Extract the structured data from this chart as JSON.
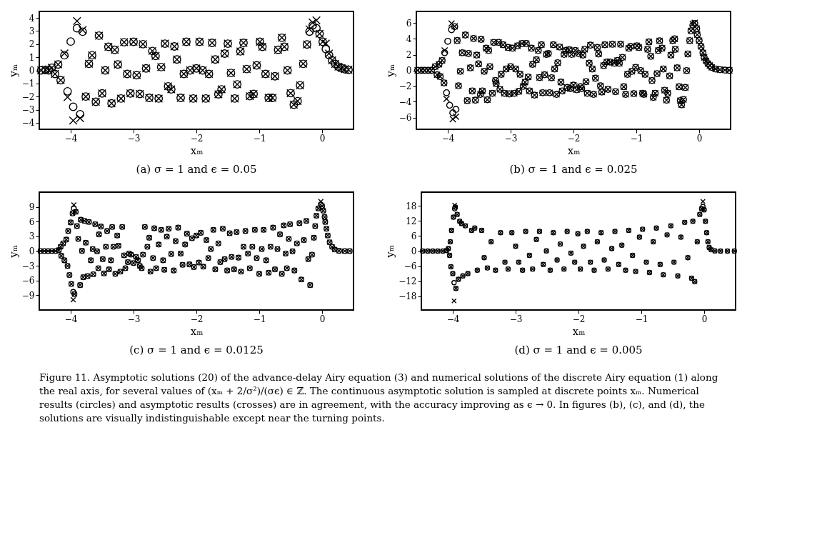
{
  "chart_data": [
    {
      "type": "scatter",
      "title": "(a) σ = 1 and ϵ = 0.05",
      "xlabel": "xₘ",
      "ylabel": "yₘ",
      "xlim": [
        -4.5,
        0.5
      ],
      "xticks": [
        -4,
        -3,
        -2,
        -1,
        0
      ],
      "ylim": [
        -4.5,
        4.5
      ],
      "yticks": [
        -4,
        -3,
        -2,
        -1,
        0,
        1,
        2,
        3,
        4
      ],
      "grid": false,
      "x": [
        -4.47,
        -4.4,
        -4.35,
        -4.3,
        -4.25,
        -4.2,
        -4.16,
        -4.1,
        -4.05,
        -4.0,
        -3.96,
        -3.9,
        -3.85,
        -3.81,
        -3.76,
        -3.71,
        -3.66,
        -3.6,
        -3.55,
        -3.5,
        -3.45,
        -3.4,
        -3.35,
        -3.3,
        -3.25,
        -3.2,
        -3.15,
        -3.1,
        -3.05,
        -3.0,
        -2.95,
        -2.9,
        -2.85,
        -2.8,
        -2.75,
        -2.7,
        -2.65,
        -2.6,
        -2.56,
        -2.5,
        -2.45,
        -2.4,
        -2.35,
        -2.31,
        -2.25,
        -2.2,
        -2.16,
        -2.1,
        -2.05,
        -2.0,
        -1.95,
        -1.9,
        -1.85,
        -1.8,
        -1.75,
        -1.7,
        -1.65,
        -1.6,
        -1.55,
        -1.5,
        -1.45,
        -1.39,
        -1.35,
        -1.3,
        -1.25,
        -1.2,
        -1.15,
        -1.09,
        -1.04,
        -0.99,
        -0.95,
        -0.9,
        -0.85,
        -0.79,
        -0.75,
        -0.7,
        -0.64,
        -0.6,
        -0.55,
        -0.5,
        -0.45,
        -0.39,
        -0.35,
        -0.3,
        -0.24,
        -0.2,
        -0.15,
        -0.09,
        -0.04,
        0.01,
        0.06,
        0.11,
        0.16,
        0.21,
        0.26,
        0.31,
        0.36,
        0.42
      ],
      "series": [
        {
          "color": "#000000",
          "marker": "circle",
          "values": [
            0,
            0.05,
            0,
            0.2,
            -0.27,
            0.45,
            -0.75,
            1.15,
            -1.6,
            2.2,
            -2.78,
            3.22,
            -3.35,
            2.95,
            -2.0,
            0.5,
            1.15,
            -2.4,
            2.65,
            -1.76,
            0,
            1.8,
            -2.52,
            1.57,
            0.45,
            -2.15,
            2.15,
            -0.27,
            -1.76,
            2.18,
            -0.37,
            -1.8,
            2.0,
            0.15,
            -2.1,
            1.48,
            1.1,
            -2.15,
            0.25,
            2.04,
            -1.22,
            -1.45,
            1.83,
            0.83,
            -2.1,
            -0.27,
            2.18,
            0,
            -2.15,
            0.15,
            2.18,
            0,
            -2.15,
            -0.27,
            2.1,
            0.83,
            -1.83,
            -1.45,
            1.28,
            2.04,
            -0.2,
            -2.15,
            -1.07,
            1.45,
            2.1,
            0.1,
            -1.97,
            -1.8,
            0.38,
            2.18,
            1.8,
            -0.27,
            -2.1,
            -2.1,
            -0.45,
            1.57,
            2.49,
            1.8,
            0,
            -1.74,
            -2.62,
            -2.35,
            -1.14,
            0.5,
            1.98,
            2.96,
            3.43,
            3.22,
            2.79,
            2.18,
            1.62,
            1.17,
            0.76,
            0.49,
            0.28,
            0.18,
            0.09,
            0.04
          ]
        },
        {
          "color": "#000000",
          "marker": "cross",
          "values": [
            0,
            0.05,
            0,
            0.2,
            -0.27,
            0.45,
            -0.75,
            1.3,
            -2.05,
            null,
            -3.83,
            3.77,
            -3.65,
            3.08,
            -2.0,
            0.5,
            1.15,
            -2.4,
            2.65,
            -1.76,
            0,
            1.8,
            -2.52,
            1.57,
            0.45,
            -2.15,
            2.15,
            -0.27,
            -1.76,
            2.18,
            -0.37,
            -1.8,
            2.0,
            0.15,
            -2.1,
            1.48,
            1.1,
            -2.15,
            0.25,
            2.04,
            -1.22,
            -1.45,
            1.83,
            0.83,
            -2.1,
            -0.27,
            2.18,
            0,
            -2.15,
            0.15,
            2.18,
            0,
            -2.15,
            -0.27,
            2.1,
            0.83,
            -1.83,
            -1.45,
            1.28,
            2.04,
            -0.2,
            -2.15,
            -1.07,
            1.45,
            2.1,
            0.1,
            -1.97,
            -1.8,
            0.38,
            2.18,
            1.8,
            -0.27,
            -2.1,
            -2.1,
            -0.45,
            1.57,
            2.49,
            1.8,
            0,
            -1.74,
            -2.62,
            -2.35,
            -1.14,
            0.5,
            1.98,
            3.13,
            3.65,
            3.82,
            2.79,
            2.18,
            2.04,
            1.28,
            0.76,
            0.49,
            0.28,
            0.18,
            0.09,
            0.04
          ]
        }
      ]
    },
    {
      "type": "scatter",
      "title": "(b) σ = 1 and ϵ = 0.025",
      "xlabel": "xₘ",
      "ylabel": "yₘ",
      "xlim": [
        -4.5,
        0.5
      ],
      "xticks": [
        -4,
        -3,
        -2,
        -1,
        0
      ],
      "ylim": [
        -7.5,
        7.5
      ],
      "yticks": [
        -6,
        -4,
        -2,
        0,
        2,
        4,
        6
      ],
      "grid": false,
      "x": [
        -4.48,
        -4.42,
        -4.37,
        -4.31,
        -4.26,
        -4.2,
        -4.17,
        -4.14,
        -4.12,
        -4.09,
        -4.06,
        -4.05,
        -4.02,
        -4.0,
        -3.97,
        -3.94,
        -3.92,
        -3.89,
        -3.87,
        -3.85,
        -3.83,
        -3.8,
        -3.77,
        -3.72,
        -3.69,
        -3.67,
        -3.64,
        -3.61,
        -3.59,
        -3.56,
        -3.54,
        -3.51,
        -3.48,
        -3.47,
        -3.45,
        -3.42,
        -3.39,
        -3.37,
        -3.35,
        -3.33,
        -3.29,
        -3.27,
        -3.24,
        -3.23,
        -3.19,
        -3.17,
        -3.15,
        -3.12,
        -3.1,
        -3.07,
        -3.04,
        -3.02,
        -3.0,
        -2.97,
        -2.94,
        -2.92,
        -2.89,
        -2.87,
        -2.85,
        -2.82,
        -2.8,
        -2.77,
        -2.75,
        -2.72,
        -2.7,
        -2.67,
        -2.65,
        -2.62,
        -2.59,
        -2.56,
        -2.54,
        -2.51,
        -2.49,
        -2.46,
        -2.43,
        -2.4,
        -2.38,
        -2.35,
        -2.32,
        -2.3,
        -2.27,
        -2.25,
        -2.22,
        -2.2,
        -2.18,
        -2.15,
        -2.12,
        -2.1,
        -2.07,
        -2.05,
        -2.03,
        -2.0,
        -1.97,
        -1.95,
        -1.92,
        -1.89,
        -1.87,
        -1.85,
        -1.82,
        -1.8,
        -1.78,
        -1.75,
        -1.73,
        -1.7,
        -1.68,
        -1.65,
        -1.62,
        -1.6,
        -1.57,
        -1.55,
        -1.52,
        -1.5,
        -1.47,
        -1.45,
        -1.42,
        -1.38,
        -1.35,
        -1.33,
        -1.3,
        -1.27,
        -1.25,
        -1.22,
        -1.2,
        -1.17,
        -1.14,
        -1.12,
        -1.09,
        -1.07,
        -1.04,
        -1.01,
        -0.99,
        -0.96,
        -0.93,
        -0.9,
        -0.88,
        -0.86,
        -0.82,
        -0.8,
        -0.77,
        -0.75,
        -0.73,
        -0.7,
        -0.67,
        -0.65,
        -0.63,
        -0.59,
        -0.57,
        -0.55,
        -0.52,
        -0.5,
        -0.47,
        -0.45,
        -0.42,
        -0.39,
        -0.38,
        -0.35,
        -0.32,
        -0.3,
        -0.28,
        -0.25,
        -0.22,
        -0.2,
        -0.18,
        -0.15,
        -0.13,
        -0.1,
        -0.07,
        -0.04,
        -0.03,
        0.0,
        0.03,
        0.06,
        0.08,
        0.11,
        0.14,
        0.17,
        0.2,
        0.26,
        0.33,
        0.41,
        0.48
      ],
      "series": [
        {
          "color": "#000000",
          "marker": "circle",
          "values": [
            0,
            0,
            0,
            0,
            0,
            0.47,
            -0.56,
            0.76,
            -0.79,
            1.26,
            -1.6,
            2.24,
            -2.85,
            3.7,
            -4.44,
            5.18,
            -5.4,
            5.56,
            -4.97,
            3.8,
            -1.97,
            -0.12,
            2.24,
            4.5,
            -3.85,
            2.15,
            0.32,
            -2.62,
            4.06,
            -3.79,
            1.94,
            0.82,
            -3.06,
            3.94,
            -2.62,
            -0.12,
            2.82,
            -3.74,
            2.53,
            0.47,
            -2.91,
            3.56,
            -1.29,
            -1.68,
            3.56,
            -2.41,
            -0.5,
            3.26,
            -2.91,
            0.18,
            2.91,
            -3.0,
            0.47,
            2.82,
            -2.91,
            0.18,
            3.12,
            -2.68,
            -0.5,
            3.41,
            -2.03,
            -1.5,
            3.41,
            -0.85,
            -2.62,
            2.82,
            0.76,
            -3.15,
            1.35,
            2.53,
            -0.91,
            3.26,
            -2.85,
            -0.56,
            2.03,
            2.15,
            -2.85,
            -0.94,
            3.26,
            0.18,
            -3.06,
            0.97,
            2.97,
            -1.5,
            -2.62,
            2.03,
            2.53,
            -2.18,
            2.62,
            -2.32,
            2.03,
            -1.88,
            2.53,
            -2.47,
            2.15,
            -2.09,
            -2.32,
            1.94,
            2.68,
            -1.44,
            -2.91,
            0.91,
            3.21,
            0.18,
            -3.06,
            -1.0,
            2.91,
            2.09,
            -1.97,
            -2.76,
            0.62,
            3.26,
            1.06,
            -2.41,
            1.06,
            3.32,
            0.91,
            -2.71,
            1.26,
            0.91,
            3.32,
            1.65,
            -2.09,
            -3.06,
            -0.5,
            2.82,
            3.03,
            -0.12,
            -2.97,
            0.38,
            3.12,
            2.91,
            -0.03,
            -2.91,
            -3.06,
            -0.5,
            2.68,
            3.62,
            1.79,
            -1.29,
            -3.44,
            -2.91,
            -0.41,
            2.53,
            3.76,
            2.82,
            0.18,
            -2.53,
            -3.79,
            -2.91,
            -0.71,
            1.94,
            3.79,
            4.0,
            2.68,
            0.32,
            -2.09,
            -3.85,
            -4.38,
            -3.71,
            -2.18,
            -0.03,
            2.09,
            3.79,
            5.03,
            5.76,
            5.97,
            5.32,
            4.53,
            3.79,
            3.03,
            2.24,
            1.65,
            1.21,
            0.85,
            0.62,
            0.38,
            0.18,
            0.09,
            0.03,
            0
          ]
        },
        {
          "color": "#000000",
          "marker": "cross",
          "values": [
            0,
            0,
            0,
            0,
            0,
            0.47,
            -0.56,
            0.76,
            -0.79,
            1.26,
            -1.6,
            2.53,
            -3.62,
            null,
            null,
            5.97,
            -6.2,
            5.6,
            -5.9,
            3.8,
            -1.97,
            -0.12,
            2.24,
            4.5,
            -3.85,
            2.15,
            0.32,
            -2.62,
            4.06,
            -3.79,
            1.94,
            0.82,
            -3.06,
            3.94,
            -2.62,
            -0.12,
            2.82,
            -3.74,
            2.53,
            0.47,
            -2.91,
            3.56,
            -1.29,
            -1.68,
            3.56,
            -2.41,
            -0.5,
            3.26,
            -2.91,
            0.18,
            2.91,
            -3.0,
            0.47,
            2.82,
            -2.91,
            0.18,
            3.12,
            -2.68,
            -0.5,
            3.41,
            -2.03,
            -1.5,
            3.41,
            -0.85,
            -2.62,
            2.82,
            0.76,
            -3.15,
            1.35,
            2.53,
            -0.91,
            3.26,
            -2.85,
            -0.56,
            2.03,
            2.15,
            -2.85,
            -0.94,
            3.26,
            0.18,
            -3.06,
            0.97,
            2.97,
            -1.5,
            -2.62,
            2.03,
            2.53,
            -2.18,
            2.62,
            -2.32,
            2.03,
            -1.88,
            2.53,
            -2.47,
            2.15,
            -2.09,
            -2.32,
            1.94,
            2.68,
            -1.44,
            -2.91,
            0.91,
            3.21,
            0.18,
            -3.06,
            -1.0,
            2.91,
            2.09,
            -1.97,
            -2.76,
            0.62,
            3.26,
            1.06,
            -2.41,
            1.06,
            3.32,
            0.91,
            -2.71,
            1.26,
            0.91,
            3.32,
            1.65,
            -2.09,
            -3.06,
            -0.5,
            2.82,
            3.03,
            -0.12,
            -2.97,
            0.38,
            3.12,
            2.91,
            -0.03,
            -2.91,
            -3.06,
            -0.5,
            2.68,
            3.62,
            1.79,
            -1.29,
            -3.44,
            -2.91,
            -0.41,
            2.53,
            3.76,
            2.82,
            0.18,
            -2.53,
            -3.79,
            -2.91,
            -0.71,
            1.94,
            3.79,
            4.0,
            2.68,
            0.32,
            -2.09,
            -3.85,
            -4.38,
            -3.71,
            -2.18,
            -0.03,
            2.09,
            3.79,
            5.03,
            5.9,
            6.06,
            5.32,
            4.53,
            3.79,
            3.03,
            2.24,
            1.65,
            1.21,
            0.85,
            0.62,
            0.38,
            0.18,
            0.09,
            0.03,
            0
          ]
        }
      ]
    },
    {
      "type": "scatter",
      "title": "(c) σ = 1 and ϵ = 0.0125",
      "xlabel": "xₘ",
      "ylabel": "yₘ",
      "xlim": [
        -4.5,
        0.5
      ],
      "xticks": [
        -4,
        -3,
        -2,
        -1,
        0
      ],
      "ylim": [
        -12,
        12
      ],
      "yticks": [
        -9,
        -6,
        -3,
        0,
        3,
        6,
        9
      ],
      "grid": false,
      "x": [
        -4.48,
        -4.42,
        -4.36,
        -4.3,
        -4.24,
        -4.19,
        -4.16,
        -4.15,
        -4.12,
        -4.1,
        -4.07,
        -4.05,
        -4.04,
        -4.02,
        -4.0,
        -3.99,
        -3.97,
        -3.96,
        -3.95,
        -3.94,
        -3.92,
        -3.9,
        -3.88,
        -3.85,
        -3.84,
        -3.82,
        -3.8,
        -3.78,
        -3.76,
        -3.73,
        -3.71,
        -3.68,
        -3.65,
        -3.64,
        -3.61,
        -3.58,
        -3.56,
        -3.55,
        -3.52,
        -3.49,
        -3.47,
        -3.44,
        -3.42,
        -3.39,
        -3.36,
        -3.34,
        -3.32,
        -3.29,
        -3.26,
        -3.24,
        -3.21,
        -3.18,
        -3.15,
        -3.13,
        -3.09,
        -3.07,
        -3.04,
        -3.0,
        -2.96,
        -2.93,
        -2.9,
        -2.87,
        -2.85,
        -2.82,
        -2.78,
        -2.75,
        -2.73,
        -2.69,
        -2.67,
        -2.64,
        -2.6,
        -2.56,
        -2.53,
        -2.51,
        -2.47,
        -2.44,
        -2.4,
        -2.36,
        -2.33,
        -2.29,
        -2.25,
        -2.22,
        -2.18,
        -2.15,
        -2.11,
        -2.07,
        -2.04,
        -2.0,
        -1.96,
        -1.93,
        -1.89,
        -1.84,
        -1.81,
        -1.77,
        -1.73,
        -1.7,
        -1.65,
        -1.62,
        -1.58,
        -1.55,
        -1.51,
        -1.47,
        -1.44,
        -1.4,
        -1.36,
        -1.33,
        -1.29,
        -1.25,
        -1.22,
        -1.18,
        -1.15,
        -1.11,
        -1.07,
        -1.04,
        -1.0,
        -0.96,
        -0.93,
        -0.89,
        -0.85,
        -0.82,
        -0.78,
        -0.75,
        -0.71,
        -0.67,
        -0.64,
        -0.61,
        -0.58,
        -0.56,
        -0.53,
        -0.51,
        -0.47,
        -0.44,
        -0.4,
        -0.36,
        -0.33,
        -0.29,
        -0.25,
        -0.22,
        -0.19,
        -0.16,
        -0.13,
        -0.11,
        -0.09,
        -0.06,
        -0.02,
        0.0,
        0.02,
        0.04,
        0.05,
        0.07,
        0.09,
        0.12,
        0.16,
        0.2,
        0.27,
        0.36,
        0.44
      ],
      "series": [
        {
          "color": "#000000",
          "marker": "circle",
          "values": [
            0,
            0,
            0,
            0,
            0,
            0.2,
            0.87,
            -0.96,
            1.56,
            -1.88,
            2.34,
            -3.03,
            4.09,
            -4.87,
            5.83,
            -6.7,
            7.67,
            -8.31,
            8.68,
            -8.77,
            7.99,
            5.1,
            2.48,
            -6.93,
            6.38,
            0.05,
            -5.33,
            6.15,
            1.7,
            -5.1,
            5.92,
            -1.88,
            0.41,
            -4.73,
            5.46,
            -0.05,
            -3.49,
            3.4,
            5.0,
            -1.65,
            -4.55,
            0.87,
            4.09,
            -3.72,
            -1.88,
            4.91,
            0.87,
            -4.64,
            3.17,
            1.1,
            -4.18,
            4.91,
            -0.87,
            -3.49,
            -2.25,
            -0.5,
            -0.73,
            -2.43,
            -1.19,
            -1.88,
            -3.03,
            -3.49,
            -0.73,
            4.91,
            0.87,
            2.71,
            -4.18,
            -1.42,
            4.64,
            -3.49,
            1.33,
            4.32,
            -1.88,
            -3.81,
            2.94,
            4.55,
            -0.6,
            -3.95,
            2.02,
            4.78,
            -0.5,
            -2.8,
            1.33,
            3.54,
            -2.71,
            2.62,
            -3.26,
            3.17,
            -2.34,
            3.72,
            -3.17,
            2.25,
            -1.42,
            0.41,
            4.32,
            -3.72,
            1.56,
            -2.25,
            4.55,
            -1.65,
            -3.95,
            3.63,
            -1.19,
            -3.72,
            3.86,
            -1.33,
            -4.18,
            0.87,
            4.09,
            -0.5,
            -3.49,
            0.87,
            4.32,
            -1.42,
            -4.64,
            0.41,
            4.32,
            -1.88,
            -4.41,
            0.87,
            4.78,
            -3.72,
            0.41,
            3.4,
            -4.64,
            5.23,
            -0.5,
            -3.49,
            2.48,
            5.46,
            -0.05,
            -3.95,
            1.56,
            5.69,
            -5.79,
            2.25,
            6.15,
            -1.65,
            -6.93,
            -0.73,
            2.71,
            5.1,
            7.21,
            8.68,
            9.5,
            9.14,
            8.22,
            6.93,
            5.92,
            4.55,
            3.17,
            1.79,
            0.87,
            0.32,
            0.05,
            0,
            0
          ]
        },
        {
          "color": "#000000",
          "marker": "cross",
          "values": [
            0,
            0,
            0,
            0,
            0,
            0.2,
            0.87,
            -0.96,
            1.56,
            -1.88,
            2.34,
            -3.03,
            4.09,
            -4.87,
            5.83,
            -6.7,
            7.67,
            -9.9,
            9.4,
            -8.77,
            7.99,
            5.1,
            2.48,
            -6.93,
            6.38,
            0.05,
            -5.33,
            6.15,
            1.7,
            -5.1,
            5.92,
            -1.88,
            0.41,
            -4.73,
            5.46,
            -0.05,
            -3.49,
            3.4,
            5.0,
            -1.65,
            -4.55,
            0.87,
            4.09,
            -3.72,
            -1.88,
            4.91,
            0.87,
            -4.64,
            3.17,
            1.1,
            -4.18,
            4.91,
            -0.87,
            -3.49,
            -2.25,
            -0.5,
            -0.73,
            -2.43,
            -1.19,
            -1.88,
            -3.03,
            -3.49,
            -0.73,
            4.91,
            0.87,
            2.71,
            -4.18,
            -1.42,
            4.64,
            -3.49,
            1.33,
            4.32,
            -1.88,
            -3.81,
            2.94,
            4.55,
            -0.6,
            -3.95,
            2.02,
            4.78,
            -0.5,
            -2.8,
            1.33,
            3.54,
            -2.71,
            2.62,
            -3.26,
            3.17,
            -2.34,
            3.72,
            -3.17,
            2.25,
            -1.42,
            0.41,
            4.32,
            -3.72,
            1.56,
            -2.25,
            4.55,
            -1.65,
            -3.95,
            3.63,
            -1.19,
            -3.72,
            3.86,
            -1.33,
            -4.18,
            0.87,
            4.09,
            -0.5,
            -3.49,
            0.87,
            4.32,
            -1.42,
            -4.64,
            0.41,
            4.32,
            -1.88,
            -4.41,
            0.87,
            4.78,
            -3.72,
            0.41,
            3.4,
            -4.64,
            5.23,
            -0.5,
            -3.49,
            2.48,
            5.46,
            -0.05,
            -3.95,
            1.56,
            5.69,
            -5.79,
            2.25,
            6.15,
            -1.65,
            -6.93,
            -0.73,
            2.71,
            5.1,
            7.21,
            8.68,
            10.1,
            9.14,
            8.22,
            6.93,
            5.92,
            4.55,
            3.17,
            1.79,
            0.87,
            0.32,
            0.05,
            0,
            0
          ]
        }
      ]
    },
    {
      "type": "scatter",
      "title": "(d) σ = 1 and ϵ = 0.005",
      "xlabel": "xₘ",
      "ylabel": "yₘ",
      "xlim": [
        -4.5,
        0.5
      ],
      "xticks": [
        -4,
        -3,
        -2,
        -1,
        0
      ],
      "ylim": [
        -23.4,
        23.4
      ],
      "yticks": [
        -18,
        -12,
        -6,
        0,
        6,
        12,
        18
      ],
      "grid": false,
      "annotations": [
        "Figure 11. Asymptotic solutions (20) of the advance-delay Airy equation (3) and numerical solutions of the discrete Airy equation (1) along the real axis, for several values of (xₘ + 2/σ²)/(σϵ) ∈ ℤ. The continuous asymptotic solution is sampled at discrete points xₘ. Numerical results (circles) and asymptotic results (crosses) are in agreement, with the accuracy improving as ϵ → 0. In figures (b), (c), and (d), the solutions are visually indistinguishable except near the turning points."
      ],
      "x": [
        -4.48,
        -4.4,
        -4.32,
        -4.24,
        -4.16,
        -4.1,
        -4.07,
        -4.05,
        -4.04,
        -4.03,
        -4.02,
        -4.0,
        -3.99,
        -3.98,
        -3.97,
        -3.96,
        -3.95,
        -3.93,
        -3.91,
        -3.89,
        -3.86,
        -3.84,
        -3.8,
        -3.76,
        -3.7,
        -3.65,
        -3.61,
        -3.54,
        -3.5,
        -3.45,
        -3.39,
        -3.32,
        -3.24,
        -3.17,
        -3.12,
        -3.06,
        -3.0,
        -2.95,
        -2.89,
        -2.84,
        -2.78,
        -2.73,
        -2.67,
        -2.62,
        -2.56,
        -2.51,
        -2.45,
        -2.4,
        -2.34,
        -2.29,
        -2.23,
        -2.18,
        -2.12,
        -2.06,
        -2.01,
        -1.97,
        -1.92,
        -1.86,
        -1.81,
        -1.75,
        -1.7,
        -1.64,
        -1.59,
        -1.53,
        -1.47,
        -1.42,
        -1.36,
        -1.31,
        -1.25,
        -1.2,
        -1.14,
        -1.09,
        -1.03,
        -0.98,
        -0.92,
        -0.87,
        -0.81,
        -0.76,
        -0.7,
        -0.65,
        -0.59,
        -0.53,
        -0.48,
        -0.42,
        -0.37,
        -0.31,
        -0.26,
        -0.2,
        -0.18,
        -0.15,
        -0.11,
        -0.07,
        -0.04,
        -0.02,
        0.0,
        0.02,
        0.04,
        0.06,
        0.08,
        0.11,
        0.17,
        0.26,
        0.37,
        0.48
      ],
      "series": [
        {
          "color": "#000000",
          "marker": "circle",
          "values": [
            0,
            0,
            0,
            0,
            0,
            0.2,
            1.0,
            -1.72,
            3.7,
            -6.24,
            8.23,
            -8.95,
            13.47,
            -12.57,
            16.82,
            17.45,
            -14.83,
            14.56,
            -11.21,
            11.84,
            10.94,
            -9.86,
            10.04,
            -8.95,
            8.23,
            9.13,
            -7.6,
            8.23,
            -2.62,
            -6.69,
            3.7,
            -7.6,
            7.32,
            -4.43,
            -7.14,
            7.32,
            1.9,
            -4.43,
            -7.6,
            7.78,
            -1.72,
            -7.14,
            4.61,
            7.78,
            -5.33,
            0.09,
            -7.6,
            7.32,
            -3.53,
            2.8,
            -7.14,
            7.78,
            -0.81,
            -4.43,
            6.87,
            -7.14,
            1.9,
            7.78,
            -4.43,
            -7.6,
            3.7,
            7.32,
            -3.53,
            -7.14,
            1.0,
            7.78,
            -5.33,
            2.35,
            -7.6,
            8.23,
            -1.72,
            -8.05,
            5.52,
            8.68,
            -4.43,
            -8.5,
            3.7,
            9.13,
            -5.33,
            -9.4,
            6.42,
            10.04,
            -4.43,
            -9.86,
            5.52,
            11.39,
            -2.62,
            -10.76,
            11.84,
            -12.12,
            3.7,
            14.56,
            16.82,
            17.72,
            16.37,
            11.84,
            7.32,
            3.7,
            1.45,
            0.54,
            0.09,
            0,
            0,
            0
          ]
        },
        {
          "color": "#000000",
          "marker": "cross",
          "values": [
            0,
            0,
            0,
            0,
            0,
            0.2,
            1.0,
            -1.72,
            3.7,
            -6.24,
            8.23,
            -8.95,
            13.47,
            -19.8,
            18.2,
            17.45,
            -14.83,
            14.56,
            -11.21,
            11.84,
            10.94,
            -9.86,
            10.04,
            -8.95,
            8.23,
            9.13,
            -7.6,
            8.23,
            -2.62,
            -6.69,
            3.7,
            -7.6,
            7.32,
            -4.43,
            -7.14,
            7.32,
            1.9,
            -4.43,
            -7.6,
            7.78,
            -1.72,
            -7.14,
            4.61,
            7.78,
            -5.33,
            0.09,
            -7.6,
            7.32,
            -3.53,
            2.8,
            -7.14,
            7.78,
            -0.81,
            -4.43,
            6.87,
            -7.14,
            1.9,
            7.78,
            -4.43,
            -7.6,
            3.7,
            7.32,
            -3.53,
            -7.14,
            1.0,
            7.78,
            -5.33,
            2.35,
            -7.6,
            8.23,
            -1.72,
            -8.05,
            5.52,
            8.68,
            -4.43,
            -8.5,
            3.7,
            9.13,
            -5.33,
            -9.4,
            6.42,
            10.04,
            -4.43,
            -9.86,
            5.52,
            11.39,
            -2.62,
            -10.76,
            11.84,
            -12.12,
            3.7,
            14.56,
            16.82,
            19.7,
            16.37,
            11.84,
            7.32,
            3.7,
            1.45,
            0.54,
            0.09,
            0,
            0,
            0
          ]
        }
      ]
    }
  ]
}
